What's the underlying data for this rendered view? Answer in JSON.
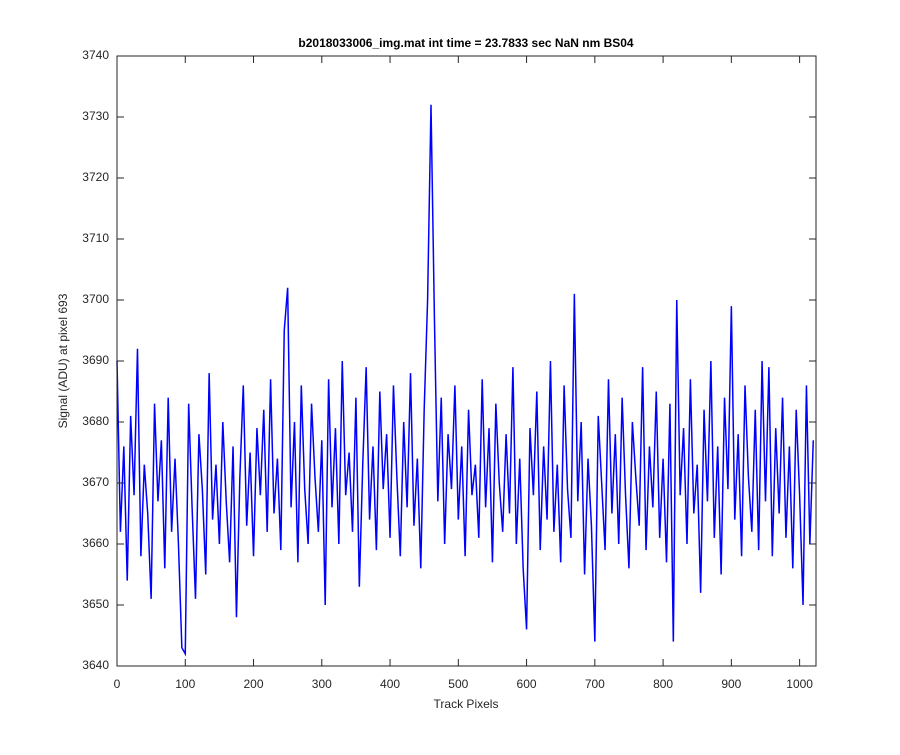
{
  "chart_data": {
    "type": "line",
    "title": "b2018033006_img.mat int time = 23.7833 sec  NaN nm BS04",
    "x_label": "Track Pixels",
    "y_label": "Signal (ADU) at pixel 693",
    "xlim": [
      0,
      1024
    ],
    "xticks": [
      0,
      100,
      200,
      300,
      400,
      500,
      600,
      700,
      800,
      900,
      1000
    ],
    "ylim": [
      3640,
      3740
    ],
    "yticks": [
      3640,
      3650,
      3660,
      3670,
      3680,
      3690,
      3700,
      3710,
      3720,
      3730,
      3740
    ],
    "x": [
      0,
      5,
      10,
      15,
      20,
      25,
      30,
      35,
      40,
      45,
      50,
      55,
      60,
      65,
      70,
      75,
      80,
      85,
      90,
      95,
      100,
      105,
      110,
      115,
      120,
      125,
      130,
      135,
      140,
      145,
      150,
      155,
      160,
      165,
      170,
      175,
      180,
      185,
      190,
      195,
      200,
      205,
      210,
      215,
      220,
      225,
      230,
      235,
      240,
      245,
      250,
      255,
      260,
      265,
      270,
      275,
      280,
      285,
      290,
      295,
      300,
      305,
      310,
      315,
      320,
      325,
      330,
      335,
      340,
      345,
      350,
      355,
      360,
      365,
      370,
      375,
      380,
      385,
      390,
      395,
      400,
      405,
      410,
      415,
      420,
      425,
      430,
      435,
      440,
      445,
      450,
      455,
      460,
      465,
      470,
      475,
      480,
      485,
      490,
      495,
      500,
      505,
      510,
      515,
      520,
      525,
      530,
      535,
      540,
      545,
      550,
      555,
      560,
      565,
      570,
      575,
      580,
      585,
      590,
      595,
      600,
      605,
      610,
      615,
      620,
      625,
      630,
      635,
      640,
      645,
      650,
      655,
      660,
      665,
      670,
      675,
      680,
      685,
      690,
      695,
      700,
      705,
      710,
      715,
      720,
      725,
      730,
      735,
      740,
      745,
      750,
      755,
      760,
      765,
      770,
      775,
      780,
      785,
      790,
      795,
      800,
      805,
      810,
      815,
      820,
      825,
      830,
      835,
      840,
      845,
      850,
      855,
      860,
      865,
      870,
      875,
      880,
      885,
      890,
      895,
      900,
      905,
      910,
      915,
      920,
      925,
      930,
      935,
      940,
      945,
      950,
      955,
      960,
      965,
      970,
      975,
      980,
      985,
      990,
      995,
      1000,
      1005,
      1010,
      1015,
      1020
    ],
    "series": [
      {
        "color": "#0000ff",
        "values": [
          3690,
          3662,
          3676,
          3654,
          3681,
          3668,
          3692,
          3658,
          3673,
          3665,
          3651,
          3683,
          3667,
          3677,
          3656,
          3684,
          3662,
          3674,
          3660,
          3643,
          3642,
          3683,
          3666,
          3651,
          3678,
          3669,
          3655,
          3688,
          3664,
          3673,
          3660,
          3680,
          3667,
          3657,
          3676,
          3648,
          3671,
          3686,
          3663,
          3675,
          3658,
          3679,
          3668,
          3682,
          3662,
          3687,
          3665,
          3674,
          3659,
          3695,
          3702,
          3666,
          3680,
          3657,
          3686,
          3669,
          3660,
          3683,
          3671,
          3662,
          3677,
          3650,
          3687,
          3666,
          3679,
          3660,
          3690,
          3668,
          3675,
          3662,
          3684,
          3653,
          3673,
          3689,
          3664,
          3676,
          3659,
          3685,
          3669,
          3678,
          3661,
          3686,
          3671,
          3658,
          3680,
          3666,
          3688,
          3663,
          3674,
          3656,
          3682,
          3700,
          3732,
          3697,
          3667,
          3684,
          3660,
          3678,
          3669,
          3686,
          3664,
          3676,
          3658,
          3682,
          3668,
          3673,
          3661,
          3687,
          3666,
          3679,
          3657,
          3683,
          3670,
          3662,
          3678,
          3665,
          3689,
          3660,
          3674,
          3656,
          3646,
          3679,
          3668,
          3685,
          3659,
          3676,
          3664,
          3690,
          3662,
          3673,
          3657,
          3686,
          3669,
          3661,
          3701,
          3667,
          3680,
          3655,
          3674,
          3663,
          3644,
          3681,
          3670,
          3659,
          3687,
          3665,
          3678,
          3660,
          3684,
          3668,
          3656,
          3680,
          3671,
          3663,
          3689,
          3659,
          3676,
          3666,
          3685,
          3661,
          3674,
          3657,
          3683,
          3644,
          3700,
          3668,
          3679,
          3660,
          3687,
          3665,
          3673,
          3652,
          3682,
          3667,
          3690,
          3661,
          3676,
          3655,
          3684,
          3669,
          3699,
          3664,
          3678,
          3658,
          3686,
          3671,
          3662,
          3682,
          3659,
          3690,
          3667,
          3689,
          3658,
          3679,
          3665,
          3684,
          3661,
          3676,
          3656,
          3682,
          3668,
          3650,
          3686,
          3660,
          3677
        ]
      }
    ]
  }
}
